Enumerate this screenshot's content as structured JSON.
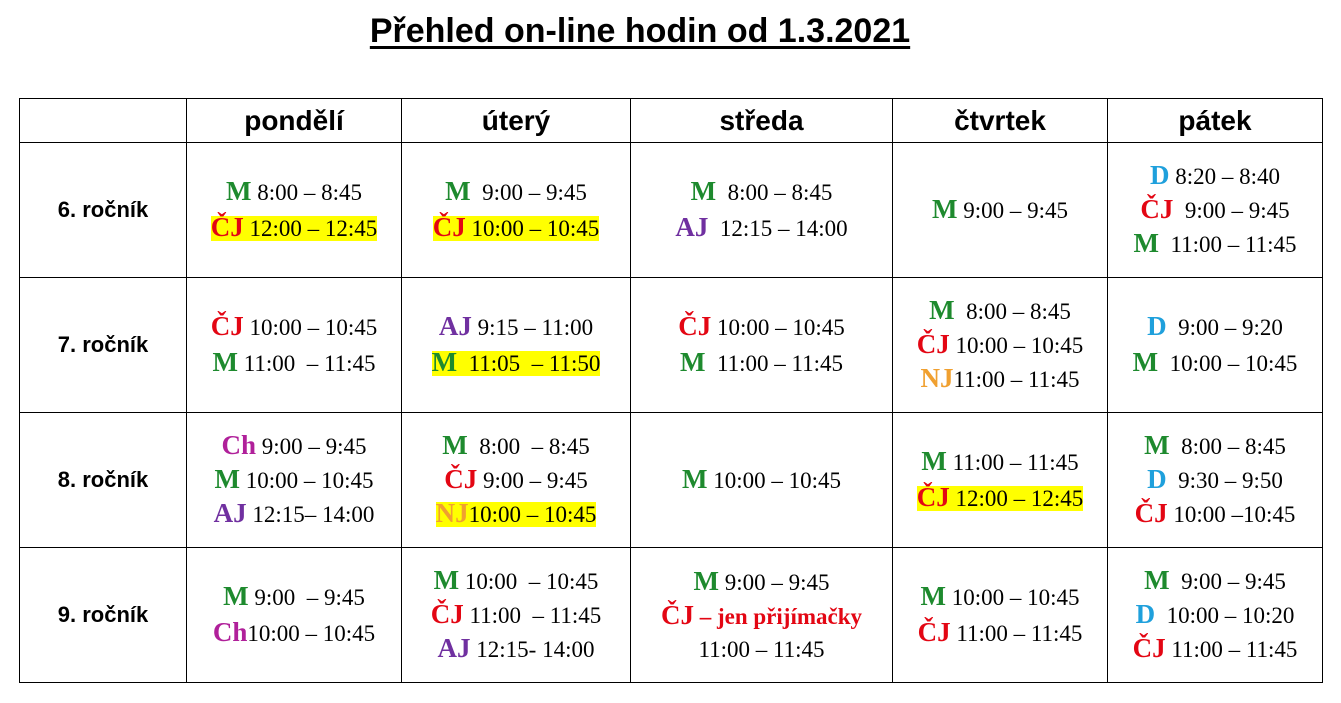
{
  "title": "Přehled on-line hodin od 1.3.2021",
  "colors": {
    "M": "#1e8a2e",
    "ČJ": "#e30613",
    "AJ": "#7030a0",
    "NJ": "#f0a030",
    "D": "#1fa0dc",
    "Ch": "#b0209a",
    "highlight": "#ffff00"
  },
  "days": [
    "pondělí",
    "úterý",
    "středa",
    "čtvrtek",
    "pátek"
  ],
  "rows": [
    {
      "label": "6. ročník",
      "cells": [
        [
          {
            "subj": "M",
            "time": " 8:00 – 8:45",
            "hl": false
          },
          {
            "subj": "ČJ",
            "time": " 12:00 – 12:45",
            "hl": true
          }
        ],
        [
          {
            "subj": "M",
            "time": "  9:00 – 9:45",
            "hl": false
          },
          {
            "subj": "ČJ",
            "time": " 10:00 – 10:45",
            "hl": true
          }
        ],
        [
          {
            "subj": "M",
            "time": "  8:00 – 8:45",
            "hl": false
          },
          {
            "subj": "AJ",
            "time": "  12:15 – 14:00",
            "hl": false
          }
        ],
        [
          {
            "subj": "M",
            "time": " 9:00 – 9:45",
            "hl": false
          }
        ],
        [
          {
            "subj": "D",
            "time": " 8:20 – 8:40",
            "hl": false
          },
          {
            "subj": "ČJ",
            "time": "  9:00 – 9:45",
            "hl": false
          },
          {
            "subj": "M",
            "time": "  11:00 – 11:45",
            "hl": false
          }
        ]
      ]
    },
    {
      "label": "7. ročník",
      "cells": [
        [
          {
            "subj": "ČJ",
            "time": " 10:00 – 10:45",
            "hl": false
          },
          {
            "subj": "M",
            "time": " 11:00  – 11:45",
            "hl": false
          }
        ],
        [
          {
            "subj": "AJ",
            "time": " 9:15 – 11:00",
            "hl": false
          },
          {
            "subj": "M",
            "time": "  11:05  – 11:50",
            "hl": true
          }
        ],
        [
          {
            "subj": "ČJ",
            "time": " 10:00 – 10:45",
            "hl": false
          },
          {
            "subj": "M",
            "time": "  11:00 – 11:45",
            "hl": false
          }
        ],
        [
          {
            "subj": "M",
            "time": "  8:00 – 8:45",
            "hl": false
          },
          {
            "subj": "ČJ",
            "time": " 10:00 – 10:45",
            "hl": false
          },
          {
            "subj": "NJ",
            "time": "11:00 – 11:45",
            "hl": false
          }
        ],
        [
          {
            "subj": "D",
            "time": "  9:00 – 9:20",
            "hl": false
          },
          {
            "subj": "M",
            "time": "  10:00 – 10:45",
            "hl": false
          }
        ]
      ]
    },
    {
      "label": "8. ročník",
      "cells": [
        [
          {
            "subj": "Ch",
            "time": " 9:00 – 9:45",
            "hl": false
          },
          {
            "subj": "M",
            "time": " 10:00 – 10:45",
            "hl": false
          },
          {
            "subj": "AJ",
            "time": " 12:15– 14:00",
            "hl": false
          }
        ],
        [
          {
            "subj": "M",
            "time": "  8:00  – 8:45",
            "hl": false
          },
          {
            "subj": "ČJ",
            "time": " 9:00 – 9:45",
            "hl": false
          },
          {
            "subj": "NJ",
            "time": "10:00 – 10:45",
            "hl": true
          }
        ],
        [
          {
            "subj": "M",
            "time": " 10:00 – 10:45",
            "hl": false
          }
        ],
        [
          {
            "subj": "M",
            "time": " 11:00 – 11:45",
            "hl": false
          },
          {
            "subj": "ČJ",
            "time": " 12:00 – 12:45",
            "hl": true
          }
        ],
        [
          {
            "subj": "M",
            "time": "  8:00 – 8:45",
            "hl": false
          },
          {
            "subj": "D",
            "time": "  9:30 – 9:50",
            "hl": false
          },
          {
            "subj": "ČJ",
            "time": " 10:00 –10:45",
            "hl": false
          }
        ]
      ]
    },
    {
      "label": "9. ročník",
      "cells": [
        [
          {
            "subj": "M",
            "time": " 9:00  – 9:45",
            "hl": false
          },
          {
            "subj": "Ch",
            "time": "10:00 – 10:45",
            "hl": false
          }
        ],
        [
          {
            "subj": "M",
            "time": " 10:00  – 10:45",
            "hl": false
          },
          {
            "subj": "ČJ",
            "time": " 11:00  – 11:45",
            "hl": false
          },
          {
            "subj": "AJ",
            "time": " 12:15- 14:00",
            "hl": false
          }
        ],
        [
          {
            "subj": "M",
            "time": " 9:00 – 9:45",
            "hl": false
          },
          {
            "subj": "ČJ",
            "note": " – jen přijímačky",
            "time": "",
            "hl": false
          },
          {
            "subj": "",
            "time": "11:00 – 11:45",
            "hl": false
          }
        ],
        [
          {
            "subj": "M",
            "time": " 10:00 – 10:45",
            "hl": false
          },
          {
            "subj": "ČJ",
            "time": " 11:00 – 11:45",
            "hl": false
          }
        ],
        [
          {
            "subj": "M",
            "time": "  9:00 – 9:45",
            "hl": false
          },
          {
            "subj": "D",
            "time": "  10:00 – 10:20",
            "hl": false
          },
          {
            "subj": "ČJ",
            "time": " 11:00 – 11:45",
            "hl": false
          }
        ]
      ]
    }
  ]
}
